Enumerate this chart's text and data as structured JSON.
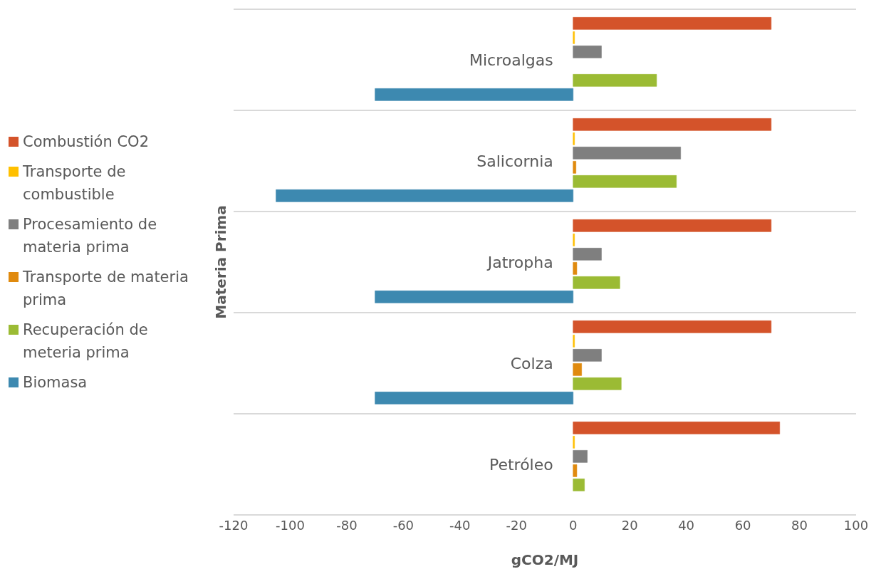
{
  "chart_data": {
    "type": "bar",
    "orientation": "horizontal",
    "xlabel": "gCO2/MJ",
    "ylabel": "Materia Prima",
    "categories": [
      "Microalgas",
      "Salicornia",
      "Jatropha",
      "Colza",
      "Petróleo"
    ],
    "series": [
      {
        "name": "Combustión CO2",
        "color": "#d4532a",
        "values": [
          70,
          70,
          70,
          70,
          73
        ]
      },
      {
        "name": "Transporte de combustible",
        "color": "#ffc000",
        "values": [
          0.5,
          0.5,
          0.5,
          0.5,
          0.5
        ]
      },
      {
        "name": "Procesamiento de materia prima",
        "color": "#7f7f7f",
        "values": [
          10,
          38,
          10,
          10,
          5
        ]
      },
      {
        "name": "Transporte de materia prima",
        "color": "#e08a0e",
        "values": [
          0,
          1,
          1.3,
          3,
          1.3
        ]
      },
      {
        "name": "Recuperación de meteria prima",
        "color": "#9bbb34",
        "values": [
          29.5,
          36.5,
          16.5,
          17,
          4
        ]
      },
      {
        "name": "Biomasa",
        "color": "#3d89b0",
        "values": [
          -70,
          -105,
          -70,
          -70,
          0
        ]
      }
    ],
    "xlim": [
      -120,
      100
    ],
    "xticks": [
      -120,
      -100,
      -80,
      -60,
      -40,
      -20,
      0,
      20,
      40,
      60,
      80,
      100
    ],
    "grid": "y",
    "legend": "left"
  }
}
